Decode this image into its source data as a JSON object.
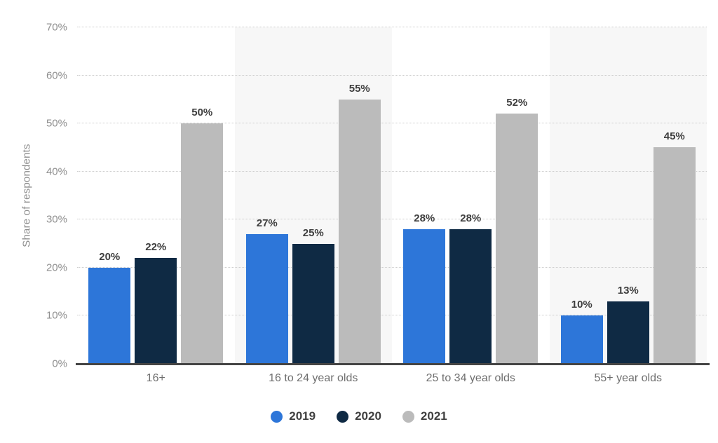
{
  "chart_data": {
    "type": "bar",
    "title": "",
    "ylabel": "Share of respondents",
    "xlabel": "",
    "categories": [
      "16+",
      "16 to 24 year olds",
      "25 to 34 year olds",
      "55+ year olds"
    ],
    "series": [
      {
        "name": "2019",
        "color": "#2D76D9",
        "values": [
          20,
          27,
          28,
          10
        ]
      },
      {
        "name": "2020",
        "color": "#0F2A44",
        "values": [
          22,
          25,
          28,
          13
        ]
      },
      {
        "name": "2021",
        "color": "#BBBBBB",
        "values": [
          50,
          55,
          52,
          45
        ]
      }
    ],
    "ylim": [
      0,
      70
    ],
    "ytick_step": 10,
    "ytick_suffix": "%",
    "value_suffix": "%",
    "grid": "horizontal-dotted",
    "gridline_color": "#cdcdcd",
    "band_colors": [
      "#ffffff",
      "#f7f7f7"
    ],
    "legend_position": "bottom"
  }
}
